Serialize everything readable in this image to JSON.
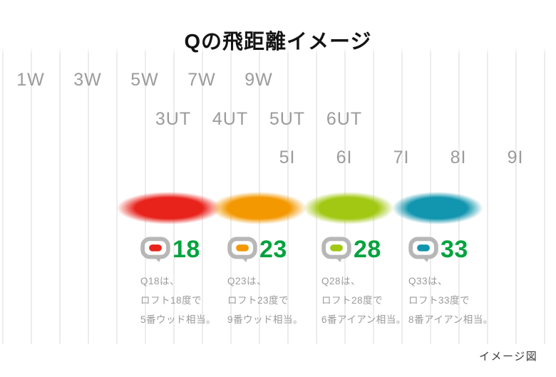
{
  "title": "Qの飛距離イメージ",
  "footnote": "イメージ図",
  "colors": {
    "number_green": "#00a33e",
    "label_gray": "#9b9b9b",
    "desc_gray": "#9a9a9a",
    "logo_gray": "#b7b7b7"
  },
  "club_labels": {
    "woods": [
      "1W",
      "3W",
      "5W",
      "7W",
      "9W"
    ],
    "hybrids": [
      "3UT",
      "4UT",
      "5UT",
      "6UT"
    ],
    "irons": [
      "5I",
      "6I",
      "7I",
      "8I",
      "9I"
    ]
  },
  "products": [
    {
      "name": "Q18",
      "number": "18",
      "color": "#e8231c",
      "description": [
        "Q18は、",
        "ロフト18度で",
        "5番ウッド相当。"
      ]
    },
    {
      "name": "Q23",
      "number": "23",
      "color": "#f39800",
      "description": [
        "Q23は、",
        "ロフト23度で",
        "9番ウッド相当。"
      ]
    },
    {
      "name": "Q28",
      "number": "28",
      "color": "#a2c813",
      "description": [
        "Q28は、",
        "ロフト28度で",
        "6番アイアン相当。"
      ]
    },
    {
      "name": "Q33",
      "number": "33",
      "color": "#1295ae",
      "description": [
        "Q33は、",
        "ロフト33度で",
        "8番アイアン相当。"
      ]
    }
  ],
  "chart_data": {
    "type": "bar",
    "orientation": "horizontal",
    "title": "Qの飛距離イメージ",
    "note": "イメージ図",
    "axis_club_rows": {
      "woods": [
        "1W",
        "3W",
        "5W",
        "7W",
        "9W"
      ],
      "utilities": [
        "3UT",
        "4UT",
        "5UT",
        "6UT"
      ],
      "irons": [
        "5I",
        "6I",
        "7I",
        "8I",
        "9I"
      ]
    },
    "series": [
      {
        "name": "Q18",
        "loft_deg": 18,
        "equivalent_club": "5番ウッド",
        "covers_approx": [
          "5W",
          "3UT",
          "7W"
        ],
        "color": "#e8231c"
      },
      {
        "name": "Q23",
        "loft_deg": 23,
        "equivalent_club": "9番ウッド",
        "covers_approx": [
          "4UT",
          "9W",
          "5UT"
        ],
        "color": "#f39800"
      },
      {
        "name": "Q28",
        "loft_deg": 28,
        "equivalent_club": "6番アイアン",
        "covers_approx": [
          "6UT",
          "6I"
        ],
        "color": "#a2c813"
      },
      {
        "name": "Q33",
        "loft_deg": 33,
        "equivalent_club": "8番アイアン",
        "covers_approx": [
          "7I",
          "8I"
        ],
        "color": "#1295ae"
      }
    ],
    "legend_position": "none",
    "grid": true
  }
}
